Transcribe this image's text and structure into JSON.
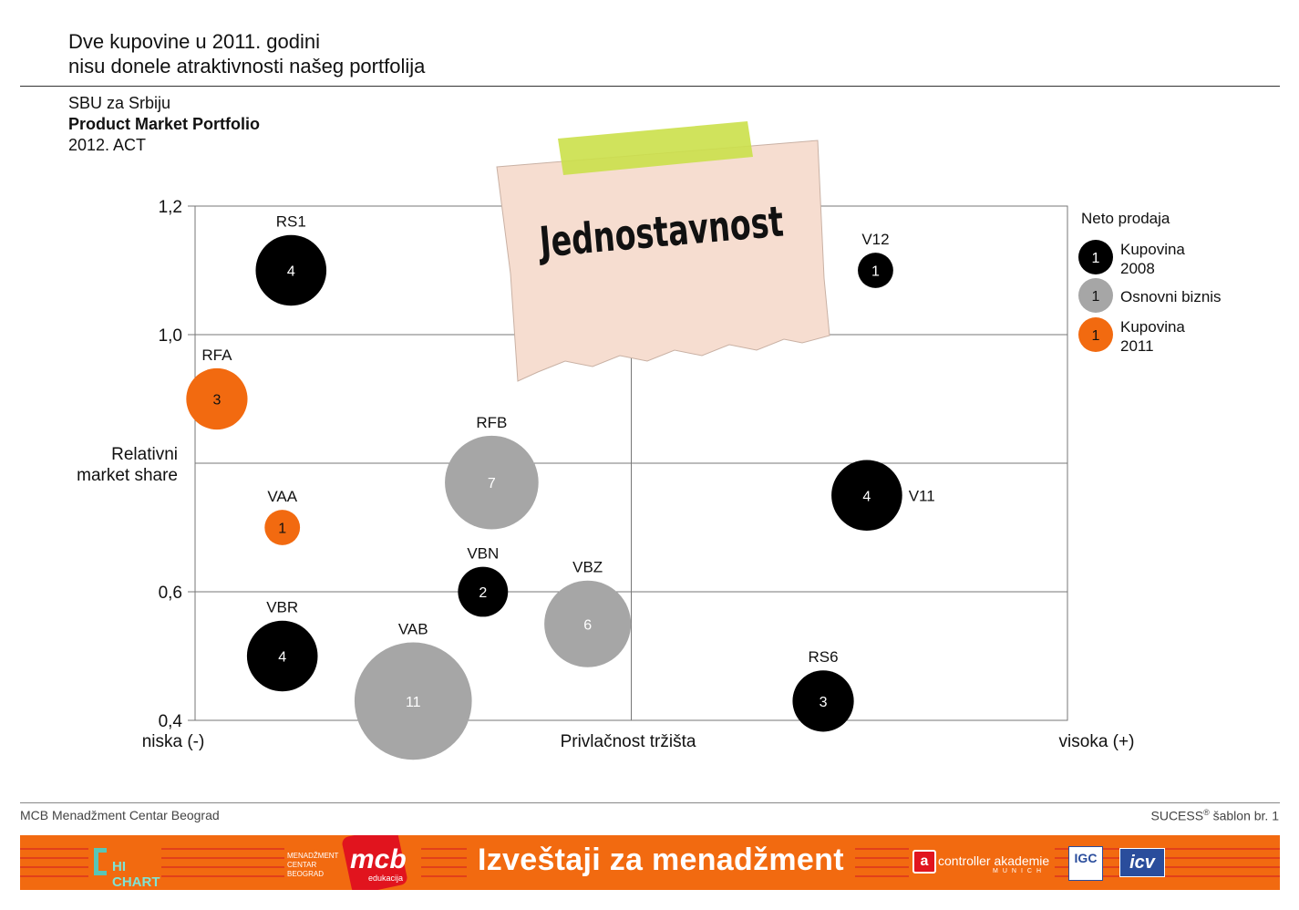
{
  "header": {
    "title_line1": "Dve kupovine u 2011. godini",
    "title_line2": "nisu donele atraktivnosti našeg portfolija",
    "sub1": "SBU za Srbiju",
    "sub2": "Product Market Portfolio",
    "sub3": "2012. ACT"
  },
  "note": {
    "text": "Jednostavnost"
  },
  "chart_data": {
    "type": "bubble",
    "ylabel_line1": "Relativni",
    "ylabel_line2": "market share",
    "xlabel": "Privlačnost tržišta",
    "x_left_label": "niska (-)",
    "x_right_label": "visoka (+)",
    "xlim": [
      0,
      100
    ],
    "ylim": [
      0.4,
      1.2
    ],
    "yticks": [
      {
        "value": 1.2,
        "label": "1,2"
      },
      {
        "value": 1.0,
        "label": "1,0"
      },
      {
        "value": 0.6,
        "label": "0,6"
      },
      {
        "value": 0.4,
        "label": "0,4"
      }
    ],
    "grid_y": [
      1.0,
      0.8,
      0.6
    ],
    "grid_x": [
      50
    ],
    "legend": {
      "title": "Neto prodaja",
      "position": "right",
      "items": [
        {
          "value": "1",
          "label_line1": "Kupovina",
          "label_line2": "2008",
          "group": "kupovina2008"
        },
        {
          "value": "1",
          "label_line1": "Osnovni biznis",
          "label_line2": "",
          "group": "osnovni"
        },
        {
          "value": "1",
          "label_line1": "Kupovina",
          "label_line2": "2011",
          "group": "kupovina2011"
        }
      ]
    },
    "colors": {
      "kupovina2008": "#000000",
      "osnovni": "#a6a6a6",
      "kupovina2011": "#f26a10",
      "grid": "#777777"
    },
    "points": [
      {
        "name": "RS1",
        "x": 11,
        "y": 1.1,
        "value": 4,
        "group": "kupovina2008",
        "label_pos": "top"
      },
      {
        "name": "RFA",
        "x": 2.5,
        "y": 0.9,
        "value": 3,
        "group": "kupovina2011",
        "label_pos": "top"
      },
      {
        "name": "VAA",
        "x": 10,
        "y": 0.7,
        "value": 1,
        "group": "kupovina2011",
        "label_pos": "top"
      },
      {
        "name": "VBR",
        "x": 10,
        "y": 0.5,
        "value": 4,
        "group": "kupovina2008",
        "label_pos": "top"
      },
      {
        "name": "VAB",
        "x": 25,
        "y": 0.43,
        "value": 11,
        "group": "osnovni",
        "label_pos": "top"
      },
      {
        "name": "RFB",
        "x": 34,
        "y": 0.77,
        "value": 7,
        "group": "osnovni",
        "label_pos": "top"
      },
      {
        "name": "VBN",
        "x": 33,
        "y": 0.6,
        "value": 2,
        "group": "kupovina2008",
        "label_pos": "top"
      },
      {
        "name": "VBZ",
        "x": 45,
        "y": 0.55,
        "value": 6,
        "group": "osnovni",
        "label_pos": "top"
      },
      {
        "name": "V12",
        "x": 78,
        "y": 1.1,
        "value": 1,
        "group": "kupovina2008",
        "label_pos": "top"
      },
      {
        "name": "V11",
        "x": 77,
        "y": 0.75,
        "value": 4,
        "group": "kupovina2008",
        "label_pos": "right"
      },
      {
        "name": "RS6",
        "x": 72,
        "y": 0.43,
        "value": 3,
        "group": "kupovina2008",
        "label_pos": "top"
      }
    ]
  },
  "footer": {
    "left": "MCB Menadžment Centar Beograd",
    "right_main": "SUCESS",
    "right_sup": "®",
    "right_rest": " šablon br. 1"
  },
  "banner": {
    "title": "Izveštaji za menadžment",
    "hichart": "HI CHART",
    "mcb_small_1": "MENADŽMENT",
    "mcb_small_2": "CENTAR",
    "mcb_small_3": "BEOGRAD",
    "mcb": "mcb",
    "mcb_sub": "edukacija",
    "ca_letter": "a",
    "ca_main": "controller akademie",
    "ca_sub": "MUNICH",
    "igc": "IGC",
    "icv": "icv"
  }
}
